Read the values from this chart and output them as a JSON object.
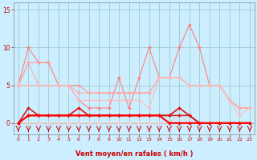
{
  "x": [
    0,
    1,
    2,
    3,
    4,
    5,
    6,
    7,
    8,
    9,
    10,
    11,
    12,
    13,
    14,
    15,
    16,
    17,
    18,
    19,
    20,
    21,
    22,
    23
  ],
  "lines": [
    {
      "color": "#FF8080",
      "lw": 0.8,
      "marker": "D",
      "markersize": 2,
      "y": [
        5,
        10,
        8,
        8,
        5,
        5,
        3,
        2,
        2,
        2,
        6,
        2,
        6,
        10,
        6,
        6,
        10,
        13,
        10,
        5,
        5,
        3,
        2,
        2
      ]
    },
    {
      "color": "#FF9999",
      "lw": 0.8,
      "marker": "D",
      "markersize": 2,
      "y": [
        5,
        8,
        8,
        8,
        5,
        5,
        5,
        4,
        4,
        4,
        4,
        4,
        4,
        4,
        6,
        6,
        6,
        5,
        5,
        5,
        5,
        3,
        2,
        2
      ]
    },
    {
      "color": "#FFAAAA",
      "lw": 0.8,
      "marker": "D",
      "markersize": 2,
      "y": [
        5,
        8,
        5,
        5,
        5,
        5,
        4,
        4,
        4,
        4,
        4,
        4,
        4,
        4,
        6,
        6,
        6,
        5,
        5,
        5,
        5,
        3,
        2,
        2
      ]
    },
    {
      "color": "#FFBBBB",
      "lw": 0.8,
      "marker": "D",
      "markersize": 2,
      "y": [
        5,
        5,
        5,
        5,
        5,
        5,
        3,
        3,
        3,
        3,
        3,
        3,
        3,
        2,
        6,
        6,
        6,
        5,
        5,
        5,
        5,
        3,
        1,
        2
      ]
    },
    {
      "color": "#FFCCCC",
      "lw": 0.8,
      "marker": "D",
      "markersize": 2,
      "y": [
        0,
        0,
        0,
        0,
        0,
        0,
        0,
        0,
        0,
        0,
        0,
        0,
        0,
        0,
        0,
        0,
        1,
        0,
        0,
        0,
        0,
        0,
        0,
        0
      ]
    },
    {
      "color": "#CC2222",
      "lw": 1.2,
      "marker": "D",
      "markersize": 2,
      "y": [
        0,
        2,
        1,
        1,
        1,
        1,
        1,
        1,
        1,
        1,
        1,
        1,
        1,
        1,
        1,
        1,
        1,
        1,
        0,
        0,
        0,
        0,
        0,
        0
      ]
    },
    {
      "color": "#DD1111",
      "lw": 1.2,
      "marker": "D",
      "markersize": 2,
      "y": [
        0,
        1,
        1,
        1,
        1,
        1,
        2,
        1,
        1,
        1,
        1,
        1,
        1,
        1,
        1,
        1,
        2,
        1,
        0,
        0,
        0,
        0,
        0,
        0
      ]
    },
    {
      "color": "#FF0000",
      "lw": 1.5,
      "marker": "D",
      "markersize": 2,
      "y": [
        0,
        1,
        1,
        1,
        1,
        1,
        1,
        1,
        1,
        1,
        1,
        1,
        1,
        1,
        1,
        0,
        0,
        0,
        0,
        0,
        0,
        0,
        0,
        0
      ]
    }
  ],
  "xlabel": "Vent moyen/en rafales ( km/h )",
  "xlabel_color": "#CC0000",
  "xlabel_fontsize": 6,
  "tick_color": "#CC0000",
  "arrow_color": "#CC0000",
  "ylim": [
    -1.5,
    16
  ],
  "xlim": [
    -0.5,
    23.5
  ],
  "yticks": [
    0,
    5,
    10,
    15
  ],
  "xticks": [
    0,
    1,
    2,
    3,
    4,
    5,
    6,
    7,
    8,
    9,
    10,
    11,
    12,
    13,
    14,
    15,
    16,
    17,
    18,
    19,
    20,
    21,
    22,
    23
  ],
  "bg_color": "#CCEEFF",
  "grid_color": "#99CCCC",
  "spine_color": "#888888"
}
